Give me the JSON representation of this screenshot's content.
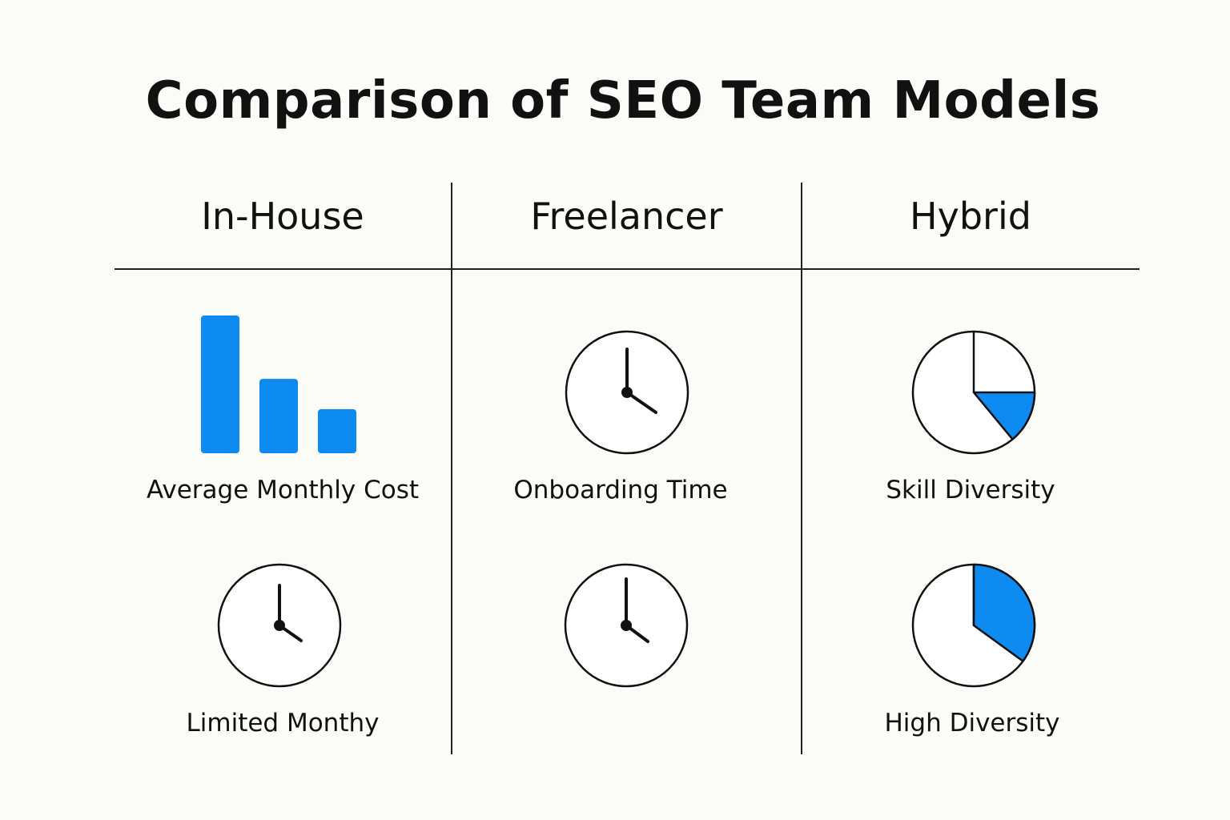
{
  "title": "Comparison of SEO Team Models",
  "columns": [
    {
      "header": "In-House",
      "top_cell": {
        "icon": "bar-chart-icon",
        "label": "Average Monthly Cost",
        "bars": [
          100,
          54,
          32
        ]
      },
      "bottom_cell": {
        "icon": "clock-icon",
        "label": "Limited Monthy"
      }
    },
    {
      "header": "Freelancer",
      "top_cell": {
        "icon": "clock-icon",
        "label": "Onboarding Time"
      },
      "bottom_cell": {
        "icon": "clock-icon",
        "label": ""
      }
    },
    {
      "header": "Hybrid",
      "top_cell": {
        "icon": "pie-chart-icon",
        "label": "Skill Diversity",
        "filled_fraction": 0.1
      },
      "bottom_cell": {
        "icon": "pie-chart-icon",
        "label": "High Diversity",
        "filled_fraction": 0.35
      }
    }
  ],
  "colors": {
    "accent": "#0d8bf0",
    "line": "#222222",
    "background": "#fbfbf8"
  }
}
